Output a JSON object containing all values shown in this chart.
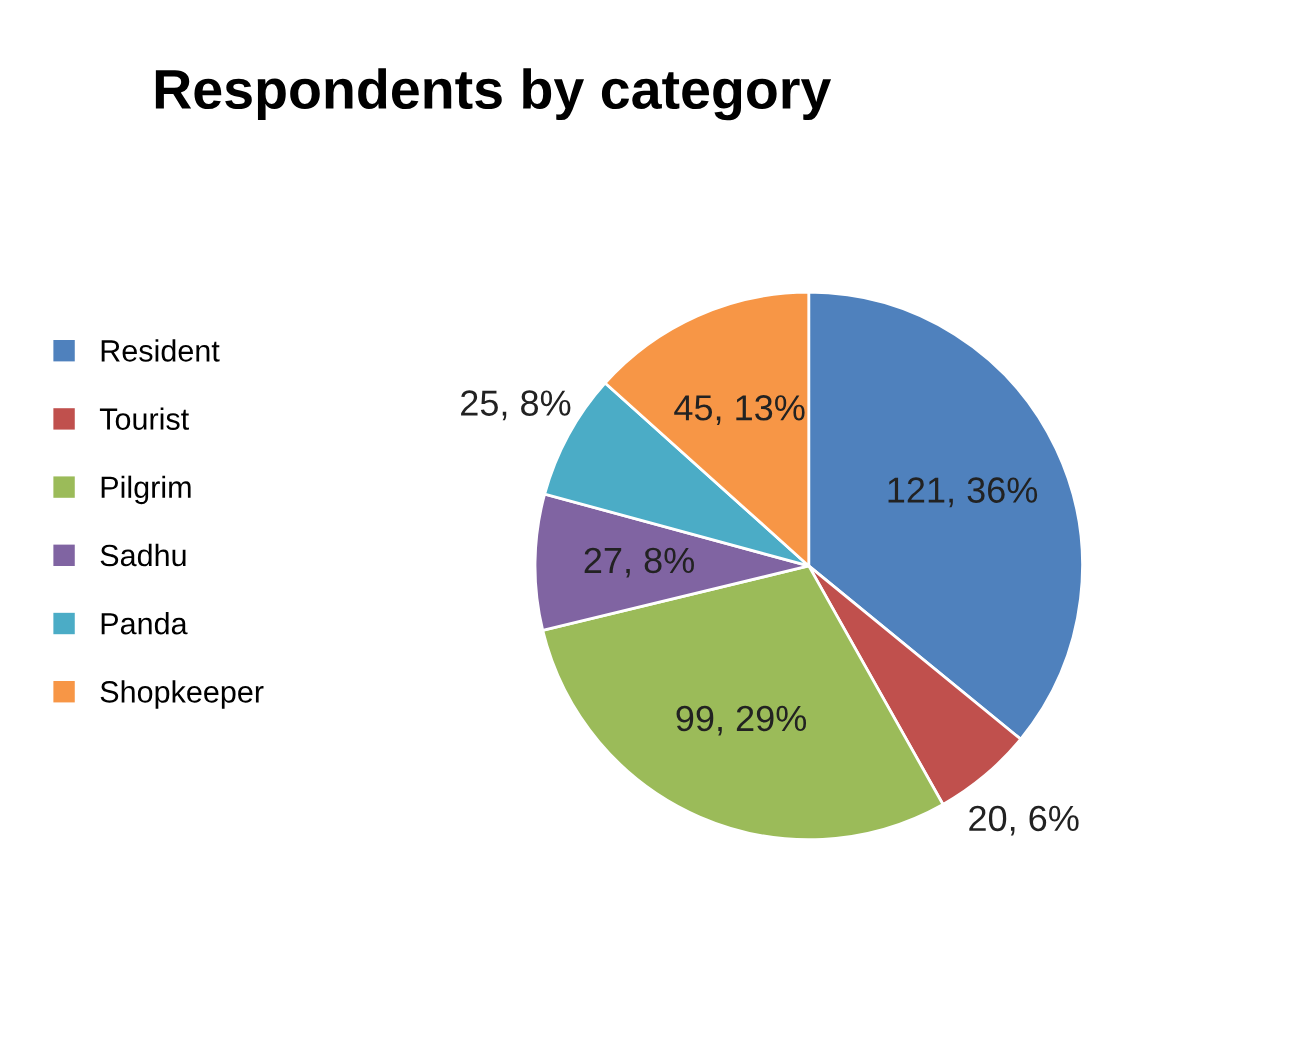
{
  "chart_data": {
    "type": "pie",
    "title": "Respondents by category",
    "categories": [
      "Resident",
      "Tourist",
      "Pilgrim",
      "Sadhu",
      "Panda",
      "Shopkeeper"
    ],
    "values": [
      121,
      20,
      99,
      27,
      25,
      45
    ],
    "colors": [
      "#4f81bd",
      "#c0504d",
      "#9bbb59",
      "#8064a2",
      "#4bacc6",
      "#f79646"
    ],
    "value_labels": [
      "121, 36%",
      "20, 6%",
      "99, 29%",
      "27, 8%",
      "25, 8%",
      "45, 13%"
    ],
    "legend": "left"
  }
}
